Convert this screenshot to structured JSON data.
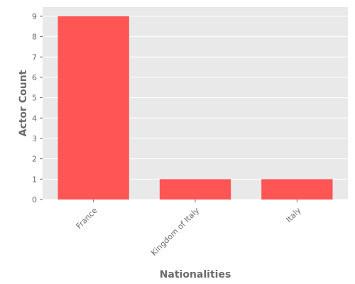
{
  "chart_data": {
    "type": "bar",
    "categories": [
      "France",
      "Kingdom of Italy",
      "Italy"
    ],
    "values": [
      9,
      1,
      1
    ],
    "title": "",
    "xlabel": "Nationalities",
    "ylabel": "Actor Count",
    "ylim": [
      0,
      9.45
    ],
    "yticks": [
      0,
      1,
      2,
      3,
      4,
      5,
      6,
      7,
      8,
      9
    ],
    "grid": true,
    "bar_color": "#ff5555",
    "plot_background": "#e9e9e9",
    "grid_color": "#ffffff",
    "text_color": "#6b6b6b",
    "x_tick_rotation_deg": -45
  }
}
